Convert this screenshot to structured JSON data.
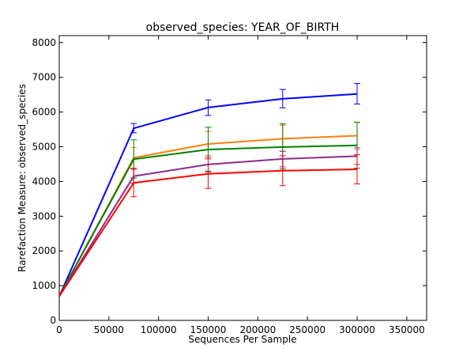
{
  "chart_data": {
    "type": "line",
    "title": "observed_species: YEAR_OF_BIRTH",
    "xlabel": "Sequences Per Sample",
    "ylabel": "Rarefaction Measure: observed_species",
    "xlim": [
      0,
      370000
    ],
    "ylim": [
      0,
      8200
    ],
    "xticks": [
      0,
      50000,
      100000,
      150000,
      200000,
      250000,
      300000,
      350000
    ],
    "xtick_labels": [
      "0",
      "50000",
      "100000",
      "150000",
      "200000",
      "250000",
      "300000",
      "350000"
    ],
    "yticks": [
      0,
      1000,
      2000,
      3000,
      4000,
      5000,
      6000,
      7000,
      8000
    ],
    "ytick_labels": [
      "0",
      "1000",
      "2000",
      "3000",
      "4000",
      "5000",
      "6000",
      "7000",
      "8000"
    ],
    "grid": false,
    "legend": "none",
    "x": [
      100,
      75000,
      150000,
      225000,
      300000
    ],
    "series": [
      {
        "color": "#0000ff",
        "values": [
          700,
          5530,
          6130,
          6380,
          6520
        ],
        "err_low": [
          700,
          5400,
          5900,
          6120,
          6230
        ],
        "err_high": [
          700,
          5670,
          6350,
          6650,
          6820
        ]
      },
      {
        "color": "#ff7f0e",
        "values": [
          700,
          4680,
          5080,
          5230,
          5320
        ],
        "err_low": [
          700,
          4380,
          4750,
          4870,
          4920
        ],
        "err_high": [
          700,
          4980,
          5430,
          5620,
          5710
        ]
      },
      {
        "color": "#008000",
        "values": [
          700,
          4640,
          4920,
          4990,
          5040
        ],
        "err_low": [
          700,
          4100,
          4300,
          4360,
          4380
        ],
        "err_high": [
          700,
          5200,
          5560,
          5660,
          5700
        ]
      },
      {
        "color": "#8b2a8b",
        "values": [
          700,
          4150,
          4490,
          4650,
          4730
        ],
        "err_low": [
          700,
          3950,
          4270,
          4420,
          4490
        ],
        "err_high": [
          700,
          4350,
          4700,
          4870,
          4970
        ]
      },
      {
        "color": "#ff0000",
        "values": [
          700,
          3960,
          4220,
          4310,
          4350
        ],
        "err_low": [
          700,
          3560,
          3800,
          3880,
          3930
        ],
        "err_high": [
          700,
          4380,
          4650,
          4740,
          4770
        ]
      }
    ]
  }
}
